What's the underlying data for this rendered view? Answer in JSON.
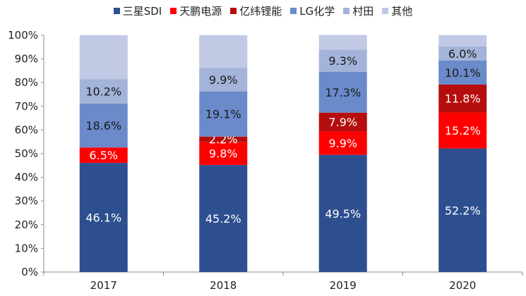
{
  "chart_data": {
    "type": "bar",
    "stacked": true,
    "categories": [
      "2017",
      "2018",
      "2019",
      "2020"
    ],
    "series": [
      {
        "name": "三星SDI",
        "color": "#2E4F8F",
        "values": [
          46.1,
          45.2,
          49.5,
          52.2
        ],
        "labels": [
          "46.1%",
          "45.2%",
          "49.5%",
          "52.2%"
        ]
      },
      {
        "name": "天鹏电源",
        "color": "#FF0000",
        "values": [
          6.5,
          9.8,
          9.9,
          15.2
        ],
        "labels": [
          "6.5%",
          "9.8%",
          "9.9%",
          "15.2%"
        ]
      },
      {
        "name": "亿纬锂能",
        "color": "#B50D0D",
        "values": [
          0,
          2.2,
          7.9,
          11.8
        ],
        "labels": [
          "",
          "2.2%",
          "7.9%",
          "11.8%"
        ]
      },
      {
        "name": "LG化学",
        "color": "#6B8ACA",
        "values": [
          18.6,
          19.1,
          17.3,
          10.1
        ],
        "labels": [
          "18.6%",
          "19.1%",
          "17.3%",
          "10.1%"
        ]
      },
      {
        "name": "村田",
        "color": "#A3B3D9",
        "values": [
          10.2,
          9.9,
          9.3,
          6.0
        ],
        "labels": [
          "10.2%",
          "9.9%",
          "9.3%",
          "6.0%"
        ]
      },
      {
        "name": "其他",
        "color": "#C1C9E4",
        "values": [
          18.6,
          13.8,
          6.2,
          4.7
        ],
        "labels": [
          "",
          "",
          "",
          ""
        ]
      }
    ],
    "ylim": [
      0,
      100
    ],
    "yticks": [
      "0%",
      "10%",
      "20%",
      "30%",
      "40%",
      "50%",
      "60%",
      "70%",
      "80%",
      "90%",
      "100%"
    ],
    "grid": false,
    "legend_position": "top"
  }
}
